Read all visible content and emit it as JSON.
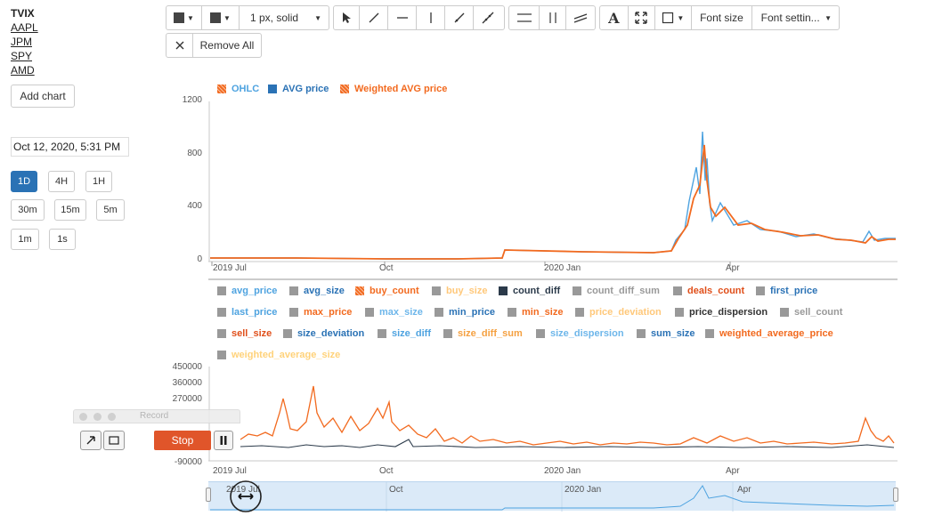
{
  "sidebar": {
    "tickers": [
      "TVIX",
      "AAPL",
      "JPM",
      "SPY",
      "AMD"
    ],
    "add_chart": "Add chart",
    "datetime_value": "Oct 12, 2020, 5:31 PM",
    "timeframes": [
      "1D",
      "4H",
      "1H",
      "30m",
      "15m",
      "5m",
      "1m",
      "1s"
    ],
    "active_timeframe": "1D"
  },
  "toolbar": {
    "line_style": "1 px, solid",
    "text_icon": "A",
    "font_size": "Font size",
    "font_settings": "Font settin...",
    "remove_all": "Remove All",
    "icons": [
      "stroke-color-icon",
      "fill-color-icon",
      "cursor-icon",
      "line-tool-icon",
      "horizontal-line-icon",
      "vertical-line-icon",
      "ray-icon",
      "extended-line-icon",
      "horizontal-channel-icon",
      "vertical-channel-icon",
      "parallel-channel-icon",
      "text-icon",
      "fit-icon",
      "shape-icon"
    ]
  },
  "price_chart": {
    "legend": [
      {
        "label": "OHLC",
        "color": "#4ea3e0",
        "hatched": true
      },
      {
        "label": "AVG price",
        "color": "#2a72b5",
        "hatched": false
      },
      {
        "label": "Weighted AVG price",
        "color": "#f26a1f",
        "hatched": true
      }
    ],
    "y_ticks": [
      "1200",
      "800",
      "400",
      "0"
    ],
    "x_ticks": [
      "2019 Jul",
      "Oct",
      "2020 Jan",
      "Apr"
    ]
  },
  "series_legend": [
    {
      "label": "avg_price",
      "color": "#4ea3e0",
      "box": "#999999"
    },
    {
      "label": "avg_size",
      "color": "#2a72b5",
      "box": "#999999"
    },
    {
      "label": "buy_count",
      "color": "#f26a1f",
      "box": "#f26a1f"
    },
    {
      "label": "buy_size",
      "color": "#ffc87a",
      "box": "#999999"
    },
    {
      "label": "count_diff",
      "color": "#2b3a4a",
      "box": "#2b3a4a"
    },
    {
      "label": "count_diff_sum",
      "color": "#999999",
      "box": "#999999"
    },
    {
      "label": "deals_count",
      "color": "#e04f1a",
      "box": "#999999"
    },
    {
      "label": "first_price",
      "color": "#2a72b5",
      "box": "#999999"
    },
    {
      "label": "last_price",
      "color": "#4ea3e0",
      "box": "#999999"
    },
    {
      "label": "max_price",
      "color": "#f26a1f",
      "box": "#999999"
    },
    {
      "label": "max_size",
      "color": "#6db6ea",
      "box": "#999999"
    },
    {
      "label": "min_price",
      "color": "#2a72b5",
      "box": "#999999"
    },
    {
      "label": "min_size",
      "color": "#f26a1f",
      "box": "#999999"
    },
    {
      "label": "price_deviation",
      "color": "#ffc87a",
      "box": "#999999"
    },
    {
      "label": "price_dispersion",
      "color": "#333333",
      "box": "#999999"
    },
    {
      "label": "sell_count",
      "color": "#999999",
      "box": "#999999"
    },
    {
      "label": "sell_size",
      "color": "#e04f1a",
      "box": "#999999"
    },
    {
      "label": "size_deviation",
      "color": "#2a72b5",
      "box": "#999999"
    },
    {
      "label": "size_diff",
      "color": "#4ea3e0",
      "box": "#999999"
    },
    {
      "label": "size_diff_sum",
      "color": "#f5a040",
      "box": "#999999"
    },
    {
      "label": "size_dispersion",
      "color": "#6db6ea",
      "box": "#999999"
    },
    {
      "label": "sum_size",
      "color": "#2a72b5",
      "box": "#999999"
    },
    {
      "label": "weighted_average_price",
      "color": "#f26a1f",
      "box": "#999999"
    },
    {
      "label": "weighted_average_size",
      "color": "#ffd27a",
      "box": "#999999"
    }
  ],
  "volume_chart": {
    "y_ticks": [
      "450000",
      "360000",
      "270000",
      "-90000"
    ],
    "x_ticks": [
      "2019 Jul",
      "Oct",
      "2020 Jan",
      "Apr"
    ]
  },
  "navigator": {
    "x_ticks": [
      "2019 Jul",
      "Oct",
      "2020 Jan",
      "Apr"
    ]
  },
  "recorder": {
    "title": "Record",
    "stop": "Stop"
  }
}
